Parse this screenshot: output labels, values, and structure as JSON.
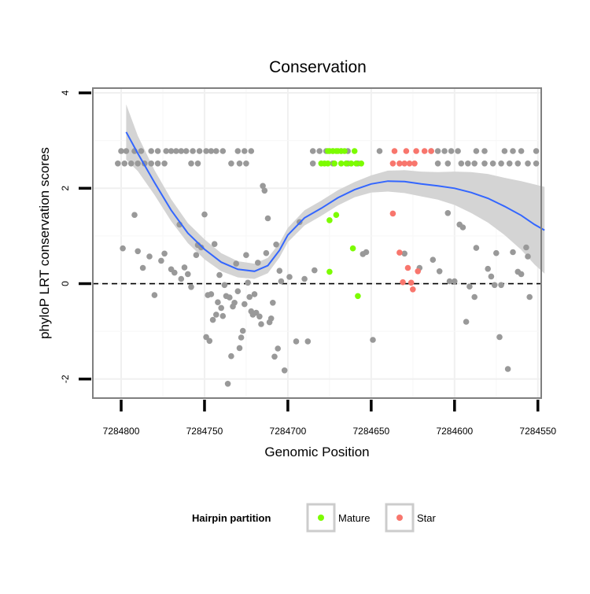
{
  "chart_data": {
    "type": "scatter",
    "title": "Conservation",
    "xlabel": "Genomic Position",
    "ylabel": "phyloP LRT conservation scores",
    "x_reversed": true,
    "xlim": [
      7284817,
      7284548
    ],
    "ylim": [
      -2.4,
      4.1
    ],
    "x_ticks": [
      7284800,
      7284750,
      7284700,
      7284650,
      7284600,
      7284550
    ],
    "x_tick_labels": [
      "7284800",
      "7284750",
      "7284700",
      "7284650",
      "7284600",
      "7284550"
    ],
    "y_ticks": [
      -2,
      0,
      2,
      4
    ],
    "y_tick_labels": [
      "-2",
      "0",
      "2",
      "4"
    ],
    "grid": true,
    "reference_line": {
      "y": 0,
      "style": "dashed"
    },
    "legend": {
      "title": "Hairpin partition",
      "position": "bottom",
      "entries": [
        {
          "label": "Mature",
          "color": "#7CFC00"
        },
        {
          "label": "Star",
          "color": "#F8766D"
        }
      ]
    },
    "colors": {
      "other": "#999999",
      "mature": "#7CFC00",
      "star": "#F8766D",
      "smooth": "#3366FF",
      "band": "#d4d4d4"
    },
    "points": {
      "other": [
        [
          7284800,
          2.78
        ],
        [
          7284797,
          2.78
        ],
        [
          7284792,
          2.78
        ],
        [
          7284788,
          2.78
        ],
        [
          7284782,
          2.78
        ],
        [
          7284778,
          2.78
        ],
        [
          7284773,
          2.78
        ],
        [
          7284770,
          2.78
        ],
        [
          7284767,
          2.78
        ],
        [
          7284764,
          2.78
        ],
        [
          7284761,
          2.78
        ],
        [
          7284757,
          2.78
        ],
        [
          7284753,
          2.78
        ],
        [
          7284749,
          2.78
        ],
        [
          7284746,
          2.78
        ],
        [
          7284743,
          2.78
        ],
        [
          7284739,
          2.78
        ],
        [
          7284730,
          2.78
        ],
        [
          7284726,
          2.78
        ],
        [
          7284722,
          2.78
        ],
        [
          7284802,
          2.52
        ],
        [
          7284798,
          2.52
        ],
        [
          7284794,
          2.52
        ],
        [
          7284790,
          2.52
        ],
        [
          7284786,
          2.52
        ],
        [
          7284782,
          2.52
        ],
        [
          7284778,
          2.52
        ],
        [
          7284774,
          2.52
        ],
        [
          7284758,
          2.52
        ],
        [
          7284754,
          2.52
        ],
        [
          7284734,
          2.52
        ],
        [
          7284729,
          2.52
        ],
        [
          7284725,
          2.52
        ],
        [
          7284685,
          2.78
        ],
        [
          7284681,
          2.78
        ],
        [
          7284677,
          2.78
        ],
        [
          7284673,
          2.78
        ],
        [
          7284668,
          2.78
        ],
        [
          7284664,
          2.78
        ],
        [
          7284645,
          2.78
        ],
        [
          7284614,
          2.78
        ],
        [
          7284610,
          2.78
        ],
        [
          7284606,
          2.78
        ],
        [
          7284602,
          2.78
        ],
        [
          7284598,
          2.78
        ],
        [
          7284587,
          2.78
        ],
        [
          7284582,
          2.78
        ],
        [
          7284570,
          2.78
        ],
        [
          7284565,
          2.78
        ],
        [
          7284560,
          2.78
        ],
        [
          7284551,
          2.78
        ],
        [
          7284685,
          2.52
        ],
        [
          7284673,
          2.52
        ],
        [
          7284664,
          2.52
        ],
        [
          7284658,
          2.52
        ],
        [
          7284610,
          2.52
        ],
        [
          7284604,
          2.52
        ],
        [
          7284596,
          2.52
        ],
        [
          7284592,
          2.52
        ],
        [
          7284588,
          2.52
        ],
        [
          7284582,
          2.52
        ],
        [
          7284577,
          2.52
        ],
        [
          7284572,
          2.52
        ],
        [
          7284567,
          2.52
        ],
        [
          7284562,
          2.52
        ],
        [
          7284556,
          2.52
        ],
        [
          7284551,
          2.52
        ],
        [
          7284799,
          0.74
        ],
        [
          7284792,
          1.44
        ],
        [
          7284790,
          0.68
        ],
        [
          7284787,
          0.33
        ],
        [
          7284783,
          0.57
        ],
        [
          7284780,
          -0.24
        ],
        [
          7284776,
          0.48
        ],
        [
          7284774,
          0.63
        ],
        [
          7284770,
          0.3
        ],
        [
          7284768,
          0.23
        ],
        [
          7284765,
          1.24
        ],
        [
          7284764,
          0.1
        ],
        [
          7284762,
          0.34
        ],
        [
          7284760,
          0.2
        ],
        [
          7284758,
          -0.07
        ],
        [
          7284755,
          0.6
        ],
        [
          7284754,
          0.81
        ],
        [
          7284752,
          0.76
        ],
        [
          7284750,
          1.45
        ],
        [
          7284749,
          -1.12
        ],
        [
          7284748,
          -0.24
        ],
        [
          7284747,
          -1.2
        ],
        [
          7284746,
          -0.22
        ],
        [
          7284745,
          -0.76
        ],
        [
          7284744,
          0.83
        ],
        [
          7284743,
          -0.65
        ],
        [
          7284742,
          -0.39
        ],
        [
          7284741,
          0.18
        ],
        [
          7284740,
          -0.51
        ],
        [
          7284739,
          -0.68
        ],
        [
          7284738,
          -0.03
        ],
        [
          7284737,
          -0.26
        ],
        [
          7284736,
          -2.1
        ],
        [
          7284735,
          -0.29
        ],
        [
          7284734,
          -1.52
        ],
        [
          7284733,
          -0.48
        ],
        [
          7284732,
          -0.4
        ],
        [
          7284731,
          0.42
        ],
        [
          7284730,
          -0.16
        ],
        [
          7284729,
          -1.35
        ],
        [
          7284728,
          -1.13
        ],
        [
          7284727,
          -0.99
        ],
        [
          7284726,
          -0.43
        ],
        [
          7284725,
          0.6
        ],
        [
          7284724,
          0.02
        ],
        [
          7284723,
          -0.28
        ],
        [
          7284722,
          -0.58
        ],
        [
          7284721,
          -0.65
        ],
        [
          7284720,
          -0.22
        ],
        [
          7284719,
          -0.61
        ],
        [
          7284718,
          0.44
        ],
        [
          7284717,
          -0.69
        ],
        [
          7284716,
          -0.85
        ],
        [
          7284715,
          2.05
        ],
        [
          7284714,
          1.95
        ],
        [
          7284713,
          0.64
        ],
        [
          7284712,
          1.37
        ],
        [
          7284711,
          -0.81
        ],
        [
          7284710,
          -0.73
        ],
        [
          7284709,
          -0.4
        ],
        [
          7284708,
          -1.53
        ],
        [
          7284707,
          0.82
        ],
        [
          7284706,
          -1.36
        ],
        [
          7284705,
          0.27
        ],
        [
          7284704,
          0.05
        ],
        [
          7284702,
          -1.82
        ],
        [
          7284699,
          0.14
        ],
        [
          7284695,
          -1.21
        ],
        [
          7284693,
          1.29
        ],
        [
          7284690,
          0.1
        ],
        [
          7284688,
          -1.21
        ],
        [
          7284684,
          0.28
        ],
        [
          7284655,
          0.62
        ],
        [
          7284653,
          0.66
        ],
        [
          7284649,
          -1.18
        ],
        [
          7284630,
          0.63
        ],
        [
          7284621,
          0.33
        ],
        [
          7284613,
          0.5
        ],
        [
          7284609,
          0.26
        ],
        [
          7284604,
          1.48
        ],
        [
          7284603,
          0.05
        ],
        [
          7284600,
          0.05
        ],
        [
          7284597,
          1.24
        ],
        [
          7284595,
          1.18
        ],
        [
          7284593,
          -0.8
        ],
        [
          7284591,
          -0.06
        ],
        [
          7284588,
          -0.28
        ],
        [
          7284587,
          0.75
        ],
        [
          7284580,
          0.31
        ],
        [
          7284578,
          0.15
        ],
        [
          7284576,
          -0.03
        ],
        [
          7284575,
          0.64
        ],
        [
          7284573,
          -1.12
        ],
        [
          7284572,
          -0.03
        ],
        [
          7284568,
          -1.79
        ],
        [
          7284565,
          0.66
        ],
        [
          7284562,
          0.25
        ],
        [
          7284560,
          0.2
        ],
        [
          7284557,
          0.76
        ],
        [
          7284556,
          0.57
        ],
        [
          7284555,
          -0.28
        ]
      ],
      "mature": [
        [
          7284676,
          2.78
        ],
        [
          7284675,
          2.78
        ],
        [
          7284673,
          2.78
        ],
        [
          7284671,
          2.78
        ],
        [
          7284670,
          2.78
        ],
        [
          7284668,
          2.78
        ],
        [
          7284666,
          2.78
        ],
        [
          7284660,
          2.78
        ],
        [
          7284680,
          2.52
        ],
        [
          7284678,
          2.52
        ],
        [
          7284676,
          2.52
        ],
        [
          7284672,
          2.52
        ],
        [
          7284668,
          2.52
        ],
        [
          7284665,
          2.52
        ],
        [
          7284662,
          2.52
        ],
        [
          7284659,
          2.52
        ],
        [
          7284656,
          2.52
        ],
        [
          7284675,
          1.33
        ],
        [
          7284671,
          1.44
        ],
        [
          7284661,
          0.74
        ],
        [
          7284675,
          0.25
        ],
        [
          7284658,
          -0.26
        ]
      ],
      "star": [
        [
          7284636,
          2.78
        ],
        [
          7284629,
          2.78
        ],
        [
          7284623,
          2.78
        ],
        [
          7284618,
          2.78
        ],
        [
          7284614,
          2.78
        ],
        [
          7284637,
          2.52
        ],
        [
          7284633,
          2.52
        ],
        [
          7284630,
          2.52
        ],
        [
          7284627,
          2.52
        ],
        [
          7284624,
          2.52
        ],
        [
          7284637,
          1.47
        ],
        [
          7284633,
          0.65
        ],
        [
          7284631,
          0.03
        ],
        [
          7284628,
          0.33
        ],
        [
          7284626,
          0.02
        ],
        [
          7284625,
          -0.12
        ],
        [
          7284622,
          0.26
        ]
      ]
    },
    "smooth_line": {
      "x": [
        7284797,
        7284790,
        7284780,
        7284770,
        7284760,
        7284750,
        7284740,
        7284730,
        7284720,
        7284712,
        7284705,
        7284700,
        7284690,
        7284680,
        7284670,
        7284660,
        7284650,
        7284640,
        7284630,
        7284620,
        7284610,
        7284600,
        7284590,
        7284580,
        7284570,
        7284560,
        7284552,
        7284546
      ],
      "y": [
        3.18,
        2.73,
        2.12,
        1.54,
        1.06,
        0.72,
        0.45,
        0.3,
        0.26,
        0.38,
        0.7,
        1.02,
        1.38,
        1.58,
        1.8,
        1.97,
        2.09,
        2.15,
        2.14,
        2.09,
        2.05,
        2.0,
        1.91,
        1.79,
        1.62,
        1.43,
        1.24,
        1.12
      ],
      "upper": [
        3.76,
        3.1,
        2.38,
        1.77,
        1.27,
        0.93,
        0.64,
        0.47,
        0.42,
        0.54,
        0.85,
        1.17,
        1.54,
        1.74,
        1.96,
        2.13,
        2.27,
        2.37,
        2.38,
        2.35,
        2.34,
        2.35,
        2.34,
        2.3,
        2.22,
        2.15,
        2.08,
        2.03
      ],
      "lower": [
        2.6,
        2.36,
        1.86,
        1.31,
        0.85,
        0.51,
        0.26,
        0.13,
        0.1,
        0.22,
        0.55,
        0.87,
        1.22,
        1.42,
        1.64,
        1.81,
        1.91,
        1.93,
        1.9,
        1.83,
        1.76,
        1.65,
        1.48,
        1.28,
        1.02,
        0.71,
        0.4,
        0.21
      ]
    }
  }
}
